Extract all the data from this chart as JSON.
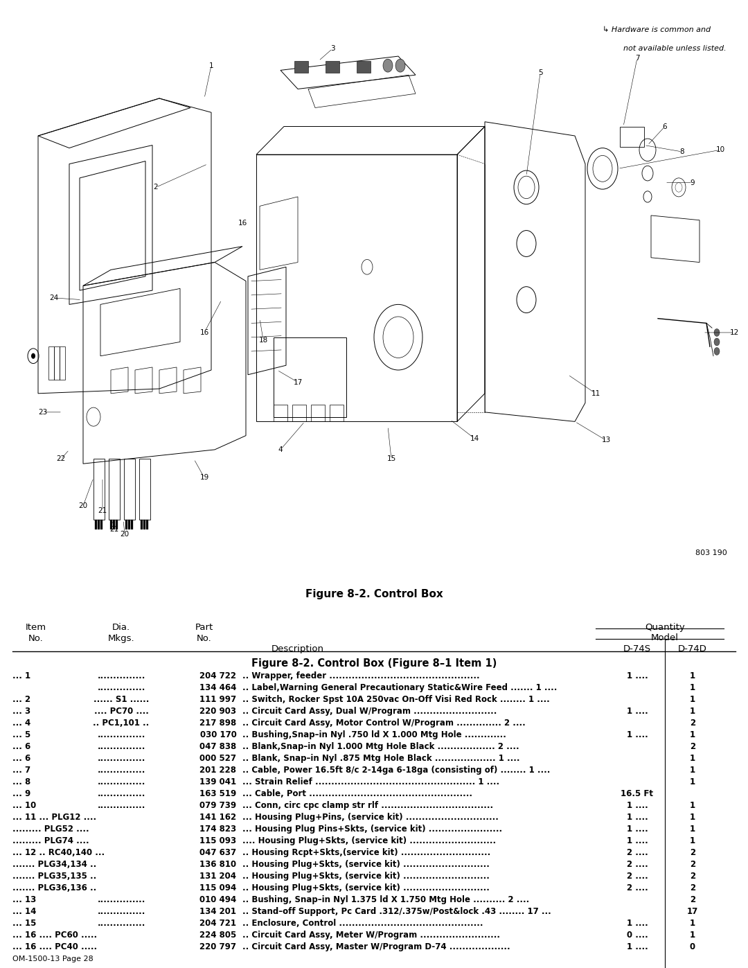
{
  "hardware_note_line1": "↳ Hardware is common and",
  "hardware_note_line2": "not available unless listed.",
  "figure_caption": "Figure 8-2. Control Box",
  "figure_number": "803 190",
  "page_footer": "OM-1500-13 Page 28",
  "table_section_title": "Figure 8-2. Control Box (Figure 8–1 Item 1)",
  "quantity_label": "Quantity",
  "model_label": "Model",
  "col_item": "Item\nNo.",
  "col_dia": "Dia.\nMkgs.",
  "col_part": "Part\nNo.",
  "col_desc": "Description",
  "col_s": "D-74S",
  "col_d": "D-74D",
  "rows": [
    {
      "item": "... 1",
      "dia": "...............",
      "part": "204 722",
      "desc": ".. Wrapper, feeder ...............................................",
      "s": "1 ....",
      "d": "1"
    },
    {
      "item": "",
      "dia": "...............",
      "part": "134 464",
      "desc": ".. Label,Warning General Precautionary Static&Wire Feed ....... 1 ....",
      "s": "",
      "d": "1"
    },
    {
      "item": "... 2",
      "dia": "...... S1 ......",
      "part": "111 997",
      "desc": ".. Switch, Rocker Spst 10A 250vac On-Off Visi Red Rock ........ 1 ....",
      "s": "",
      "d": "1"
    },
    {
      "item": "... 3",
      "dia": ".... PC70 ....",
      "part": "220 903",
      "desc": ".. Circuit Card Assy, Dual W/Program ..........................",
      "s": "1 ....",
      "d": "1"
    },
    {
      "item": "... 4",
      "dia": ".. PC1,101 ..",
      "part": "217 898",
      "desc": ".. Circuit Card Assy, Motor Control W/Program .............. 2 ....",
      "s": "",
      "d": "2"
    },
    {
      "item": "... 5",
      "dia": "...............",
      "part": "030 170",
      "desc": ".. Bushing,Snap–in Nyl .750 ld X 1.000 Mtg Hole .............",
      "s": "1 ....",
      "d": "1"
    },
    {
      "item": "... 6",
      "dia": "...............",
      "part": "047 838",
      "desc": ".. Blank,Snap–in Nyl 1.000 Mtg Hole Black .................. 2 ....",
      "s": "",
      "d": "2"
    },
    {
      "item": "... 6",
      "dia": "...............",
      "part": "000 527",
      "desc": ".. Blank, Snap–in Nyl .875 Mtg Hole Black ................... 1 ....",
      "s": "",
      "d": "1"
    },
    {
      "item": "... 7",
      "dia": "...............",
      "part": "201 228",
      "desc": ".. Cable, Power 16.5ft 8/c 2-14ga 6-18ga (consisting of) ........ 1 ....",
      "s": "",
      "d": "1"
    },
    {
      "item": "... 8",
      "dia": "...............",
      "part": "139 041",
      "desc": "... Strain Relief .................................................. 1 ....",
      "s": "",
      "d": "1"
    },
    {
      "item": "... 9",
      "dia": "...............",
      "part": "163 519",
      "desc": "... Cable, Port ...................................................",
      "s": "16.5 Ft",
      "d": ""
    },
    {
      "item": "... 10",
      "dia": "...............",
      "part": "079 739",
      "desc": "... Conn, circ cpc clamp str rlf ...................................",
      "s": "1 ....",
      "d": "1"
    },
    {
      "item": "... 11 ... PLG12 ....",
      "dia": "",
      "part": "141 162",
      "desc": "... Housing Plug+Pins, (service kit) .............................",
      "s": "1 ....",
      "d": "1"
    },
    {
      "item": "......... PLG52 ....",
      "dia": "",
      "part": "174 823",
      "desc": "... Housing Plug Pins+Skts, (service kit) .......................",
      "s": "1 ....",
      "d": "1"
    },
    {
      "item": "......... PLG74 ....",
      "dia": "",
      "part": "115 093",
      "desc": ".... Housing Plug+Skts, (service kit) ...........................",
      "s": "1 ....",
      "d": "1"
    },
    {
      "item": "... 12 .. RC40,140 ...",
      "dia": "",
      "part": "047 637",
      "desc": ".. Housing Rcpt+Skts,(service kit) ............................",
      "s": "2 ....",
      "d": "2"
    },
    {
      "item": "....... PLG34,134 ..",
      "dia": "",
      "part": "136 810",
      "desc": ".. Housing Plug+Skts, (service kit) ...........................",
      "s": "2 ....",
      "d": "2"
    },
    {
      "item": "....... PLG35,135 ..",
      "dia": "",
      "part": "131 204",
      "desc": ".. Housing Plug+Skts, (service kit) ...........................",
      "s": "2 ....",
      "d": "2"
    },
    {
      "item": "....... PLG36,136 ..",
      "dia": "",
      "part": "115 094",
      "desc": ".. Housing Plug+Skts, (service kit) ...........................",
      "s": "2 ....",
      "d": "2"
    },
    {
      "item": "... 13",
      "dia": "...............",
      "part": "010 494",
      "desc": ".. Bushing, Snap–in Nyl 1.375 ld X 1.750 Mtg Hole .......... 2 ....",
      "s": "",
      "d": "2"
    },
    {
      "item": "... 14",
      "dia": "...............",
      "part": "134 201",
      "desc": ".. Stand–off Support, Pc Card .312/.375w/Post&lock .43 ........ 17 ...",
      "s": "",
      "d": "17"
    },
    {
      "item": "... 15",
      "dia": "...............",
      "part": "204 721",
      "desc": ".. Enclosure, Control .............................................",
      "s": "1 ....",
      "d": "1"
    },
    {
      "item": "... 16 .... PC60 .....",
      "dia": "",
      "part": "224 805",
      "desc": ".. Circuit Card Assy, Meter W/Program .........................",
      "s": "0 ....",
      "d": "1"
    },
    {
      "item": "... 16 .... PC40 .....",
      "dia": "",
      "part": "220 797",
      "desc": ".. Circuit Card Assy, Master W/Program D-74 ...................",
      "s": "1 ....",
      "d": "0"
    }
  ],
  "bg_color": "#ffffff"
}
